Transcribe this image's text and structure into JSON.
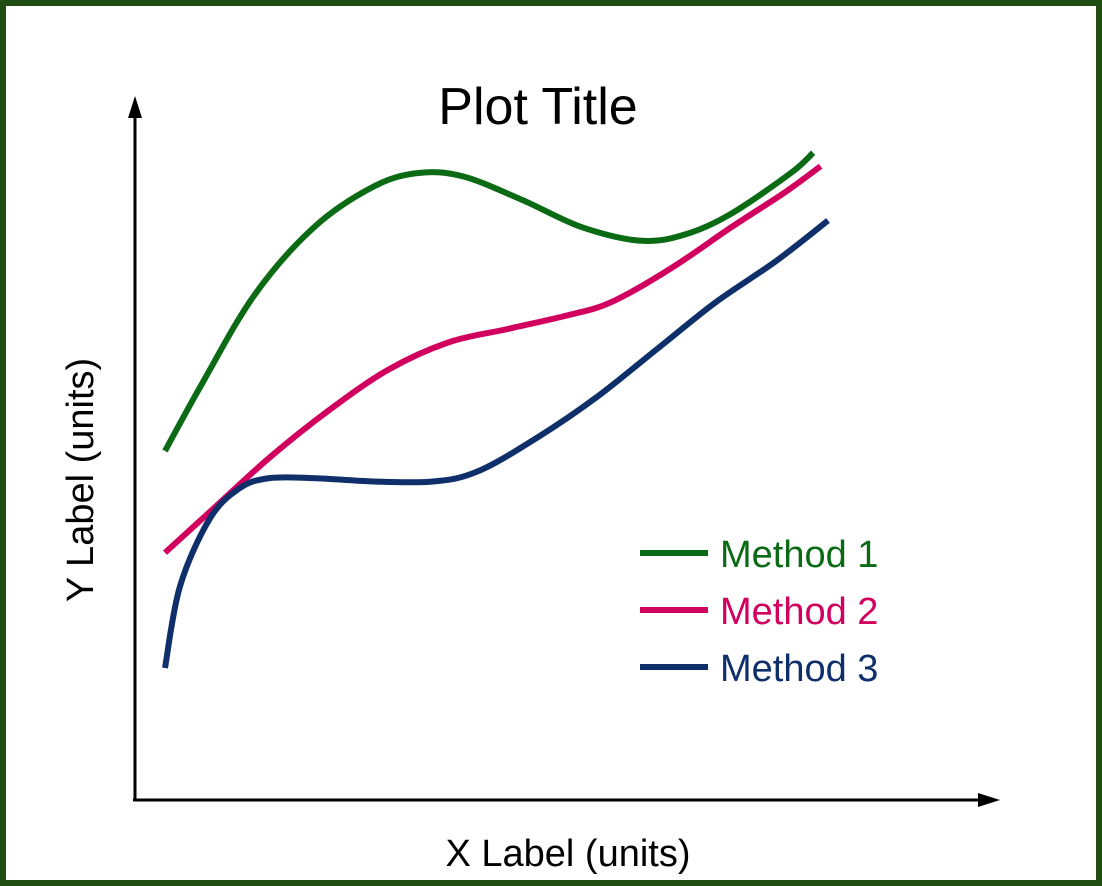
{
  "chart_data": {
    "type": "line",
    "title": "Plot Title",
    "xlabel": "X Label (units)",
    "ylabel": "Y Label (units)",
    "xlim": [
      0,
      10
    ],
    "ylim": [
      0,
      10
    ],
    "grid": false,
    "axis_ticks": false,
    "legend_position": "bottom-right",
    "series": [
      {
        "name": "Method 1",
        "color": "#0b6b14",
        "x": [
          0.0,
          0.5,
          1.2,
          2.0,
          2.8,
          3.4,
          4.0,
          4.8,
          5.6,
          6.4,
          7.0,
          7.6,
          8.4,
          8.7
        ],
        "y": [
          5.0,
          6.0,
          7.3,
          8.3,
          8.9,
          9.1,
          9.05,
          8.7,
          8.3,
          8.1,
          8.2,
          8.5,
          9.1,
          9.4
        ]
      },
      {
        "name": "Method 2",
        "color": "#d1005f",
        "x": [
          0.0,
          0.6,
          1.4,
          2.2,
          3.0,
          3.8,
          4.6,
          5.4,
          6.0,
          6.8,
          7.6,
          8.3,
          8.8
        ],
        "y": [
          3.5,
          4.1,
          4.9,
          5.6,
          6.2,
          6.6,
          6.8,
          7.0,
          7.2,
          7.7,
          8.3,
          8.8,
          9.2
        ]
      },
      {
        "name": "Method 3",
        "color": "#0f2f6b",
        "x": [
          0.0,
          0.2,
          0.6,
          1.0,
          1.4,
          2.0,
          2.8,
          3.6,
          4.2,
          5.0,
          5.8,
          6.6,
          7.4,
          8.2,
          8.9
        ],
        "y": [
          1.8,
          3.0,
          4.0,
          4.45,
          4.6,
          4.6,
          4.55,
          4.55,
          4.7,
          5.2,
          5.8,
          6.5,
          7.2,
          7.8,
          8.4
        ]
      }
    ]
  }
}
